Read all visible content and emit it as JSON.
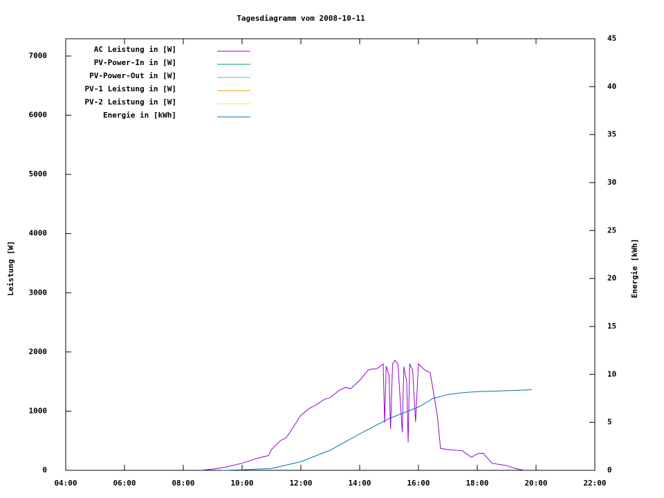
{
  "chart_data": {
    "type": "line",
    "title": "Tagesdiagramm vom 2008-10-11",
    "ylabel": "Leistung [W]",
    "y2label": "Energie [kWh]",
    "xlim": [
      4,
      22
    ],
    "xticks": [
      {
        "value": 4,
        "label": "04:00"
      },
      {
        "value": 6,
        "label": "06:00"
      },
      {
        "value": 8,
        "label": "08:00"
      },
      {
        "value": 10,
        "label": "10:00"
      },
      {
        "value": 12,
        "label": "12:00"
      },
      {
        "value": 14,
        "label": "14:00"
      },
      {
        "value": 16,
        "label": "16:00"
      },
      {
        "value": 18,
        "label": "18:00"
      },
      {
        "value": 20,
        "label": "20:00"
      },
      {
        "value": 22,
        "label": "22:00"
      }
    ],
    "ylim": [
      0,
      7292
    ],
    "yticks": [
      0,
      1000,
      2000,
      3000,
      4000,
      5000,
      6000,
      7000
    ],
    "y2lim": [
      0,
      45
    ],
    "y2ticks": [
      0,
      5,
      10,
      15,
      20,
      25,
      30,
      35,
      40,
      45
    ],
    "legend": "top-left",
    "series": [
      {
        "name": "AC Leistung in [W]",
        "color": "#9400d3",
        "x": [
          8.6,
          9.0,
          9.5,
          10.0,
          10.5,
          10.9,
          11.0,
          11.3,
          11.5,
          11.7,
          12.0,
          12.3,
          12.5,
          12.8,
          13.0,
          13.3,
          13.5,
          13.7,
          14.0,
          14.3,
          14.6,
          14.8,
          14.85,
          14.9,
          15.0,
          15.05,
          15.12,
          15.2,
          15.3,
          15.45,
          15.5,
          15.6,
          15.65,
          15.7,
          15.8,
          15.9,
          16.0,
          16.2,
          16.4,
          16.5,
          16.64,
          16.75,
          17.0,
          17.5,
          17.8,
          18.0,
          18.2,
          18.5,
          19.0,
          19.3,
          19.6
        ],
        "values": [
          0,
          20,
          60,
          120,
          200,
          250,
          350,
          500,
          550,
          700,
          930,
          1050,
          1100,
          1200,
          1230,
          1350,
          1400,
          1380,
          1520,
          1700,
          1720,
          1800,
          800,
          1760,
          1600,
          700,
          1800,
          1860,
          1800,
          640,
          1750,
          1500,
          470,
          1800,
          1700,
          820,
          1800,
          1700,
          1650,
          1350,
          930,
          370,
          350,
          330,
          220,
          280,
          290,
          120,
          80,
          30,
          0
        ]
      },
      {
        "name": "PV-Power-In in [W]",
        "color": "#009e73",
        "x": [],
        "values": []
      },
      {
        "name": "PV-Power-Out in [W]",
        "color": "#56b4e9",
        "x": [],
        "values": []
      },
      {
        "name": "PV-1 Leistung in [W]",
        "color": "#e69f00",
        "x": [],
        "values": []
      },
      {
        "name": "PV-2 Leistung in [W]",
        "color": "#f0e442",
        "x": [],
        "values": []
      },
      {
        "name": "Energie in [kWh]",
        "color": "#0072b2",
        "axis": "y2",
        "x": [
          9.3,
          10.0,
          11.0,
          12.0,
          13.0,
          14.0,
          15.0,
          16.0,
          16.5,
          17.0,
          17.5,
          18.0,
          19.0,
          19.85
        ],
        "values": [
          0,
          0.05,
          0.2,
          0.9,
          2.1,
          3.8,
          5.4,
          6.6,
          7.5,
          7.9,
          8.1,
          8.2,
          8.3,
          8.4
        ]
      }
    ]
  }
}
